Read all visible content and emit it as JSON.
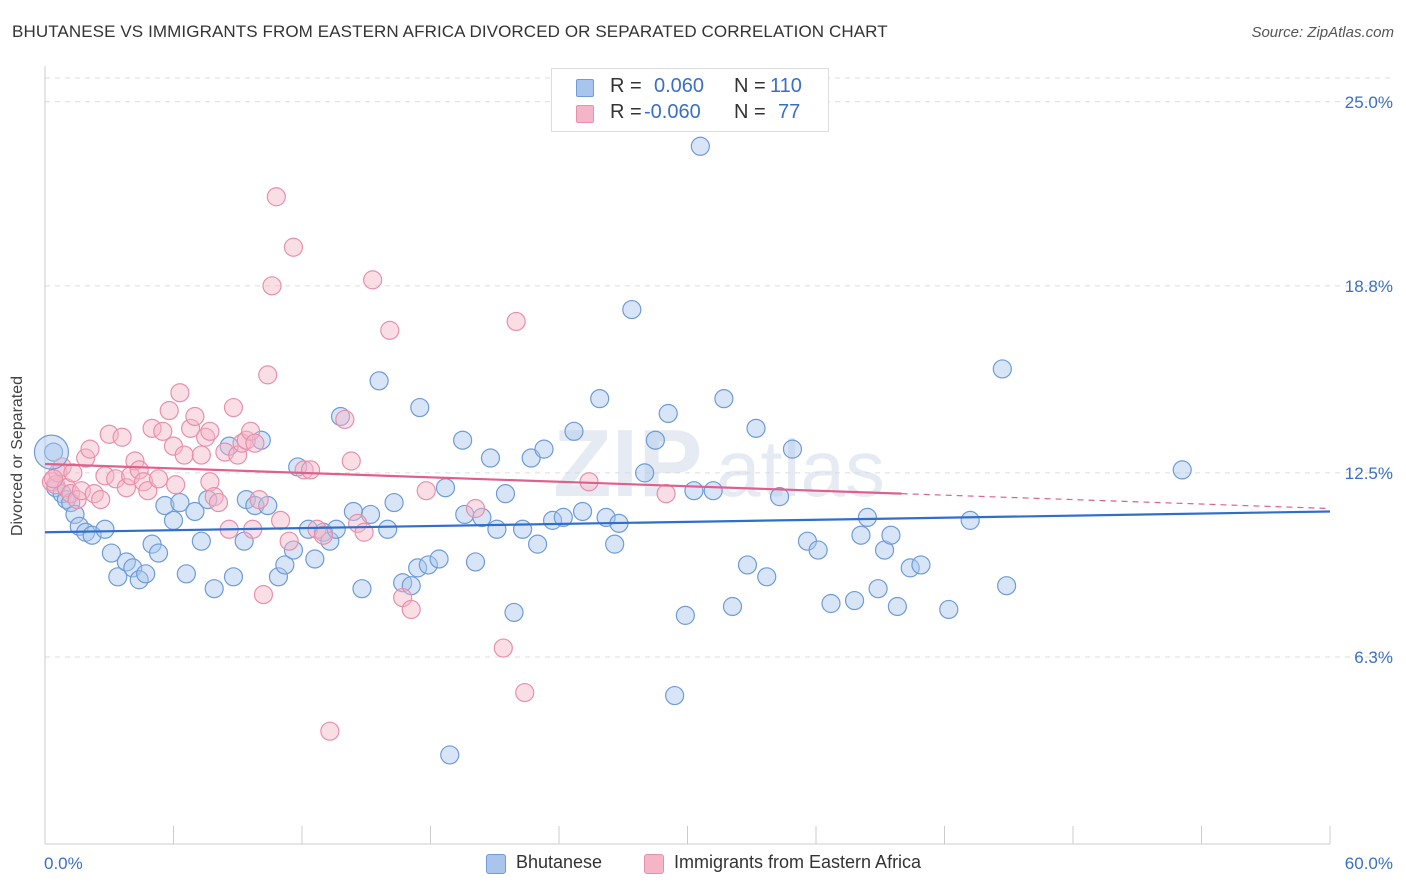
{
  "header": {
    "title": "BHUTANESE VS IMMIGRANTS FROM EASTERN AFRICA DIVORCED OR SEPARATED CORRELATION CHART",
    "source": "Source: ZipAtlas.com"
  },
  "legend": {
    "r_label": "R =",
    "n_label": "N =",
    "rows": [
      {
        "r": "0.060",
        "n": "110"
      },
      {
        "r": "-0.060",
        "n": "77"
      }
    ]
  },
  "watermark": {
    "zip": "ZIP",
    "atlas": "atlas"
  },
  "colors": {
    "blue_fill": "#a9c5ec",
    "blue_stroke": "#6f9bd8",
    "blue_line": "#2f6fcb",
    "pink_fill": "#f5b5c8",
    "pink_stroke": "#e890ab",
    "pink_line": "#e0608c",
    "tick_label": "#3a6fc7",
    "grid": "#dddddd"
  },
  "chart_data": {
    "type": "scatter",
    "xlabel": "",
    "ylabel": "Divorced or Separated",
    "xlim": [
      0,
      60
    ],
    "ylim": [
      0,
      25.8
    ],
    "x_tick_labels": [
      {
        "value": 0,
        "label": "0.0%"
      },
      {
        "value": 60,
        "label": "60.0%"
      }
    ],
    "y_ticks": [
      {
        "value": 6.3,
        "label": "6.3%"
      },
      {
        "value": 12.5,
        "label": "12.5%"
      },
      {
        "value": 18.8,
        "label": "18.8%"
      },
      {
        "value": 25.0,
        "label": "25.0%"
      }
    ],
    "grid": "horizontal dashed",
    "legend_position": "bottom",
    "series": [
      {
        "name": "Bhutanese",
        "color": "#6f9bd8",
        "trend": {
          "x": [
            0,
            60
          ],
          "y": [
            10.5,
            11.2
          ]
        },
        "points": [
          [
            0.4,
            13.2
          ],
          [
            0.5,
            12.0
          ],
          [
            0.8,
            11.8
          ],
          [
            1.0,
            11.6
          ],
          [
            1.2,
            11.5
          ],
          [
            1.4,
            11.1
          ],
          [
            1.6,
            10.7
          ],
          [
            1.9,
            10.5
          ],
          [
            2.2,
            10.4
          ],
          [
            2.8,
            10.6
          ],
          [
            3.1,
            9.8
          ],
          [
            3.4,
            9.0
          ],
          [
            3.8,
            9.5
          ],
          [
            4.1,
            9.3
          ],
          [
            4.4,
            8.9
          ],
          [
            4.7,
            9.1
          ],
          [
            5.0,
            10.1
          ],
          [
            5.3,
            9.8
          ],
          [
            5.6,
            11.4
          ],
          [
            6.0,
            10.9
          ],
          [
            6.3,
            11.5
          ],
          [
            6.6,
            9.1
          ],
          [
            7.0,
            11.2
          ],
          [
            7.3,
            10.2
          ],
          [
            7.6,
            11.6
          ],
          [
            7.9,
            8.6
          ],
          [
            8.6,
            13.4
          ],
          [
            8.8,
            9.0
          ],
          [
            9.3,
            10.2
          ],
          [
            9.4,
            11.6
          ],
          [
            9.8,
            11.4
          ],
          [
            10.1,
            13.6
          ],
          [
            10.4,
            11.4
          ],
          [
            10.9,
            9.0
          ],
          [
            11.2,
            9.4
          ],
          [
            11.6,
            9.9
          ],
          [
            11.8,
            12.7
          ],
          [
            12.3,
            10.6
          ],
          [
            12.6,
            9.6
          ],
          [
            13.0,
            10.5
          ],
          [
            13.3,
            10.2
          ],
          [
            13.6,
            10.6
          ],
          [
            13.8,
            14.4
          ],
          [
            14.4,
            11.2
          ],
          [
            14.8,
            8.6
          ],
          [
            15.2,
            11.1
          ],
          [
            15.6,
            15.6
          ],
          [
            16.0,
            10.6
          ],
          [
            16.3,
            11.5
          ],
          [
            16.7,
            8.8
          ],
          [
            17.1,
            8.7
          ],
          [
            17.4,
            9.3
          ],
          [
            17.5,
            14.7
          ],
          [
            17.9,
            9.4
          ],
          [
            18.4,
            9.6
          ],
          [
            18.7,
            12.0
          ],
          [
            18.9,
            3.0
          ],
          [
            19.5,
            13.6
          ],
          [
            19.6,
            11.1
          ],
          [
            20.1,
            9.5
          ],
          [
            20.4,
            11.0
          ],
          [
            20.8,
            13.0
          ],
          [
            21.1,
            10.6
          ],
          [
            21.5,
            11.8
          ],
          [
            21.9,
            7.8
          ],
          [
            22.3,
            10.6
          ],
          [
            22.7,
            13.0
          ],
          [
            23.0,
            10.1
          ],
          [
            23.3,
            13.3
          ],
          [
            23.7,
            10.9
          ],
          [
            24.2,
            11.0
          ],
          [
            24.7,
            13.9
          ],
          [
            25.1,
            11.2
          ],
          [
            25.9,
            15.0
          ],
          [
            26.2,
            11.0
          ],
          [
            26.6,
            10.1
          ],
          [
            26.8,
            10.8
          ],
          [
            27.4,
            18.0
          ],
          [
            28.0,
            12.5
          ],
          [
            28.5,
            13.6
          ],
          [
            29.1,
            14.5
          ],
          [
            29.4,
            5.0
          ],
          [
            29.9,
            7.7
          ],
          [
            30.3,
            11.9
          ],
          [
            30.6,
            23.5
          ],
          [
            31.2,
            11.9
          ],
          [
            31.7,
            15.0
          ],
          [
            32.1,
            8.0
          ],
          [
            32.8,
            9.4
          ],
          [
            33.2,
            14.0
          ],
          [
            33.7,
            9.0
          ],
          [
            34.3,
            11.7
          ],
          [
            34.9,
            13.3
          ],
          [
            35.6,
            10.2
          ],
          [
            36.1,
            9.9
          ],
          [
            36.7,
            8.1
          ],
          [
            37.8,
            8.2
          ],
          [
            38.1,
            10.4
          ],
          [
            38.4,
            11.0
          ],
          [
            38.9,
            8.6
          ],
          [
            39.2,
            9.9
          ],
          [
            39.5,
            10.4
          ],
          [
            39.8,
            8.0
          ],
          [
            40.4,
            9.3
          ],
          [
            40.9,
            9.4
          ],
          [
            42.2,
            7.9
          ],
          [
            43.2,
            10.9
          ],
          [
            44.7,
            16.0
          ],
          [
            44.9,
            8.7
          ],
          [
            53.1,
            12.6
          ]
        ]
      },
      {
        "name": "Immigrants from Eastern Africa",
        "color": "#e890ab",
        "trend": {
          "x": [
            0,
            40
          ],
          "y": [
            12.8,
            11.8
          ]
        },
        "trend_extension": {
          "x": [
            40,
            60
          ],
          "y": [
            11.8,
            11.3
          ]
        },
        "points": [
          [
            0.3,
            12.2
          ],
          [
            0.5,
            12.1
          ],
          [
            0.6,
            12.5
          ],
          [
            0.8,
            12.7
          ],
          [
            1.0,
            12.0
          ],
          [
            1.2,
            11.8
          ],
          [
            1.5,
            11.6
          ],
          [
            1.7,
            11.9
          ],
          [
            1.9,
            13.0
          ],
          [
            2.1,
            13.3
          ],
          [
            2.3,
            11.8
          ],
          [
            2.6,
            11.6
          ],
          [
            2.8,
            12.4
          ],
          [
            3.0,
            13.8
          ],
          [
            3.3,
            12.3
          ],
          [
            3.6,
            13.7
          ],
          [
            3.8,
            12.0
          ],
          [
            4.0,
            12.4
          ],
          [
            4.2,
            12.9
          ],
          [
            4.4,
            12.6
          ],
          [
            4.6,
            12.2
          ],
          [
            4.8,
            11.9
          ],
          [
            5.0,
            14.0
          ],
          [
            5.3,
            12.3
          ],
          [
            5.5,
            13.9
          ],
          [
            5.8,
            14.6
          ],
          [
            6.0,
            13.4
          ],
          [
            6.3,
            15.2
          ],
          [
            6.5,
            13.1
          ],
          [
            6.8,
            14.0
          ],
          [
            7.0,
            14.4
          ],
          [
            7.3,
            13.1
          ],
          [
            7.5,
            13.7
          ],
          [
            7.7,
            12.2
          ],
          [
            7.9,
            11.7
          ],
          [
            8.1,
            11.5
          ],
          [
            8.4,
            13.2
          ],
          [
            8.6,
            10.6
          ],
          [
            8.8,
            14.7
          ],
          [
            9.0,
            13.1
          ],
          [
            9.2,
            13.5
          ],
          [
            9.4,
            13.6
          ],
          [
            9.6,
            13.9
          ],
          [
            9.8,
            13.5
          ],
          [
            10.0,
            11.6
          ],
          [
            10.2,
            8.4
          ],
          [
            10.4,
            15.8
          ],
          [
            10.6,
            18.8
          ],
          [
            10.8,
            21.8
          ],
          [
            11.0,
            10.9
          ],
          [
            11.6,
            20.1
          ],
          [
            12.1,
            12.6
          ],
          [
            12.4,
            12.6
          ],
          [
            12.7,
            10.6
          ],
          [
            13.0,
            10.4
          ],
          [
            13.3,
            3.8
          ],
          [
            14.0,
            14.3
          ],
          [
            14.3,
            12.9
          ],
          [
            14.6,
            10.8
          ],
          [
            14.9,
            10.5
          ],
          [
            15.3,
            19.0
          ],
          [
            16.1,
            17.3
          ],
          [
            16.7,
            8.3
          ],
          [
            17.1,
            7.9
          ],
          [
            17.8,
            11.9
          ],
          [
            20.1,
            11.3
          ],
          [
            21.4,
            6.6
          ],
          [
            22.0,
            17.6
          ],
          [
            22.4,
            5.1
          ],
          [
            25.4,
            12.2
          ],
          [
            29.0,
            11.8
          ],
          [
            0.4,
            12.3
          ],
          [
            1.3,
            12.5
          ],
          [
            6.1,
            12.1
          ],
          [
            7.7,
            13.9
          ],
          [
            9.7,
            10.6
          ],
          [
            11.4,
            10.2
          ]
        ]
      }
    ]
  },
  "bottom_legend": [
    {
      "label": "Bhutanese"
    },
    {
      "label": "Immigrants from Eastern Africa"
    }
  ]
}
